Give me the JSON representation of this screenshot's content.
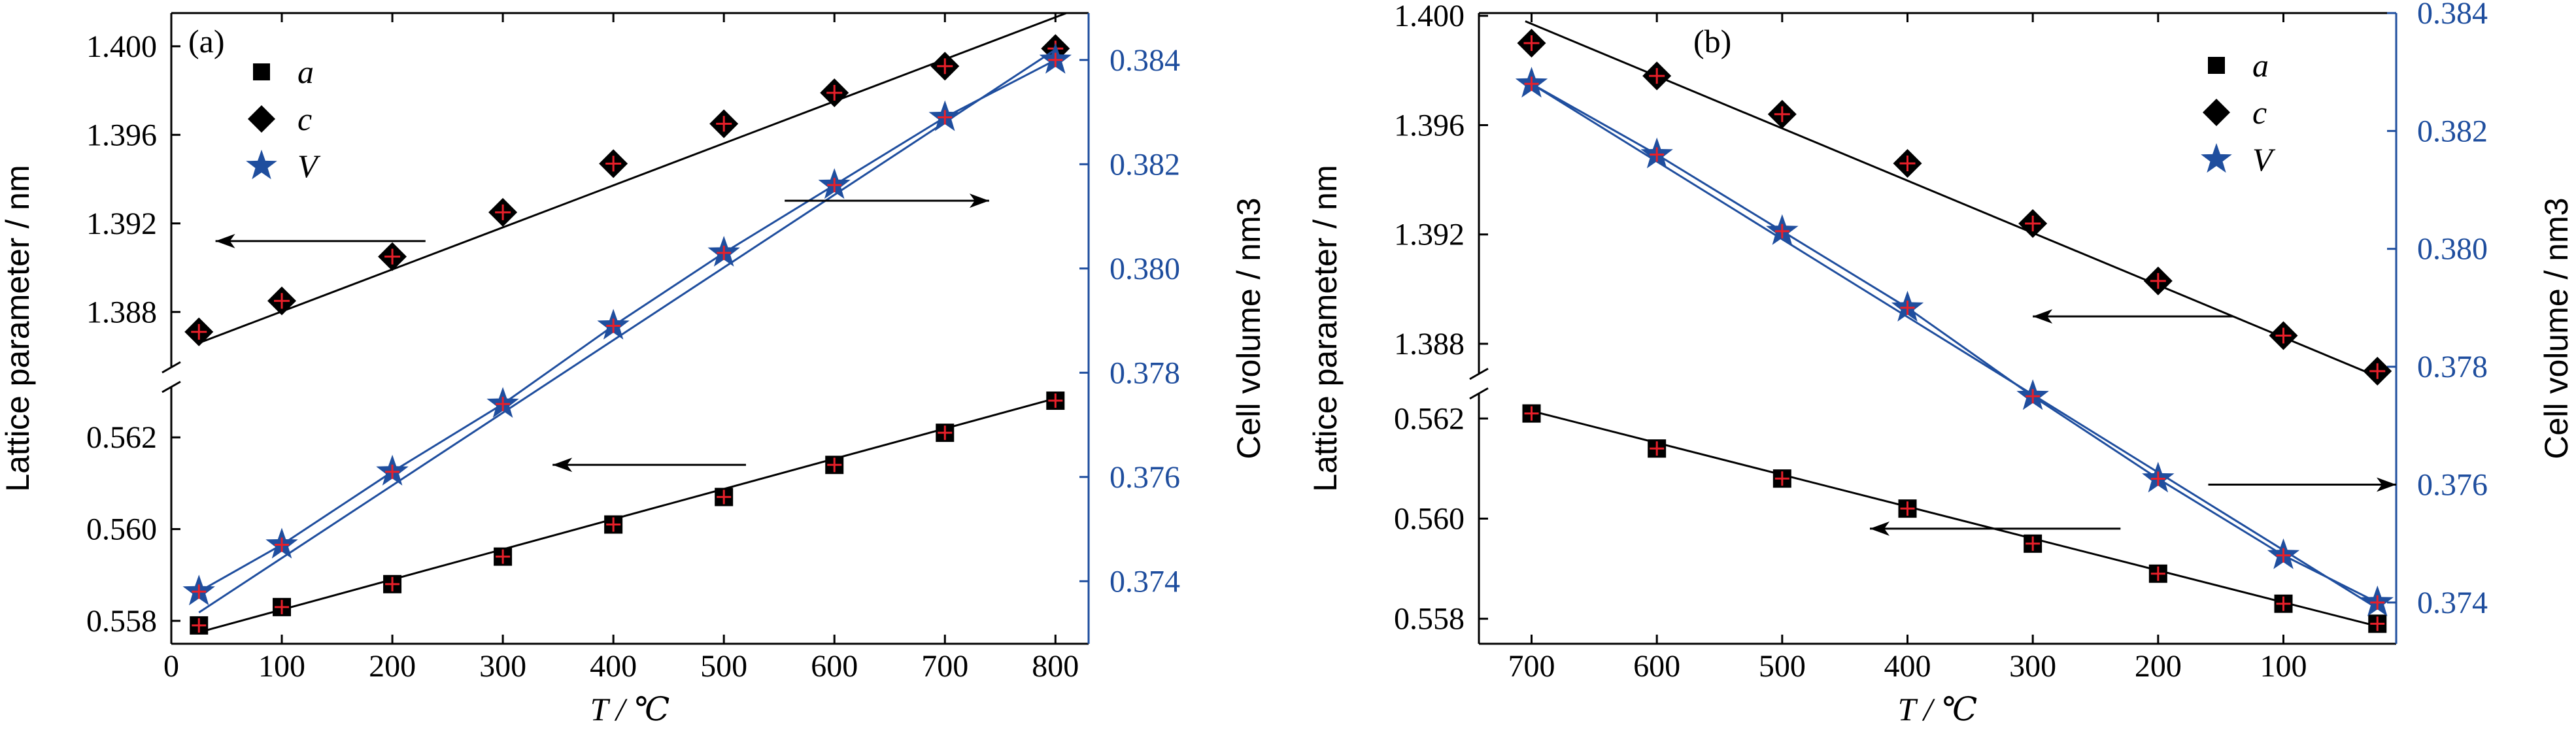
{
  "colors": {
    "black": "#000000",
    "blue": "#1f4e9e",
    "red": "#e8202a",
    "axis_right": "#1f4e9e"
  },
  "chart_data": [
    {
      "panel_label": "(a)",
      "type": "scatter",
      "xlabel": "T / ℃",
      "ylabel_left": "Lattice parameter / nm",
      "ylabel_right": "Cell volume / nm3",
      "x_ticks": [
        "0",
        "100",
        "200",
        "300",
        "400",
        "500",
        "600",
        "700",
        "800"
      ],
      "x_range": [
        0,
        830
      ],
      "x_reversed": false,
      "y_upper_ticks": [
        "1.388",
        "1.392",
        "1.396",
        "1.400"
      ],
      "y_upper_range": [
        1.3855,
        1.4015
      ],
      "y_lower_ticks": [
        "0.558",
        "0.560",
        "0.562"
      ],
      "y_lower_range": [
        0.5575,
        0.5631
      ],
      "y_right_ticks": [
        "0.374",
        "0.376",
        "0.378",
        "0.380",
        "0.382",
        "0.384"
      ],
      "y_right_range": [
        0.3728,
        0.3849
      ],
      "legend": [
        {
          "marker": "square",
          "label": "a"
        },
        {
          "marker": "diamond",
          "label": "c"
        },
        {
          "marker": "star",
          "label": "V"
        }
      ],
      "series": [
        {
          "name": "a",
          "axis": "lower",
          "marker": "square",
          "x": [
            25,
            100,
            200,
            300,
            400,
            500,
            600,
            700,
            800
          ],
          "y": [
            0.5579,
            0.5583,
            0.5588,
            0.5594,
            0.5601,
            0.5607,
            0.5614,
            0.5621,
            0.5628
          ],
          "fit": [
            [
              25,
              0.55775
            ],
            [
              800,
              0.56285
            ]
          ]
        },
        {
          "name": "c",
          "axis": "upper",
          "marker": "diamond",
          "x": [
            25,
            100,
            200,
            300,
            400,
            500,
            600,
            700,
            800
          ],
          "y": [
            1.3871,
            1.3885,
            1.3905,
            1.3925,
            1.3947,
            1.3965,
            1.3979,
            1.3991,
            1.3999
          ],
          "fit": [
            [
              25,
              1.3866
            ],
            [
              810,
              1.4015
            ]
          ]
        },
        {
          "name": "V",
          "axis": "right",
          "marker": "star",
          "x": [
            25,
            100,
            200,
            300,
            400,
            500,
            600,
            700,
            800
          ],
          "y": [
            0.3738,
            0.3747,
            0.3761,
            0.3774,
            0.3789,
            0.3803,
            0.3816,
            0.3829,
            0.384
          ],
          "fit": [
            [
              25,
              0.3734
            ],
            [
              800,
              0.3842
            ]
          ]
        }
      ],
      "arrows": [
        {
          "from": [
            230,
            1.3912
          ],
          "to": [
            40,
            1.3912
          ]
        },
        {
          "from": [
            555,
            0.3813
          ],
          "to": [
            740,
            0.3813
          ],
          "axis": "right"
        },
        {
          "from": [
            520,
            0.5614
          ],
          "to": [
            345,
            0.5614
          ],
          "axis": "lower"
        }
      ]
    },
    {
      "panel_label": "(b)",
      "type": "scatter",
      "xlabel": "T / ℃",
      "ylabel_left": "Lattice parameter / nm",
      "ylabel_right": "Cell volume / nm3",
      "x_ticks": [
        "700",
        "600",
        "500",
        "400",
        "300",
        "200",
        "100"
      ],
      "x_range": [
        742,
        10
      ],
      "x_reversed": true,
      "y_upper_ticks": [
        "1.388",
        "1.392",
        "1.396",
        "1.400"
      ],
      "y_upper_range": [
        1.3869,
        1.4001
      ],
      "y_lower_ticks": [
        "0.558",
        "0.560",
        "0.562"
      ],
      "y_lower_range": [
        0.5575,
        0.5625
      ],
      "y_right_ticks": [
        "0.374",
        "0.376",
        "0.378",
        "0.380",
        "0.382",
        "0.384"
      ],
      "y_right_range": [
        0.3733,
        0.384
      ],
      "legend": [
        {
          "marker": "square",
          "label": "a"
        },
        {
          "marker": "diamond",
          "label": "c"
        },
        {
          "marker": "star",
          "label": "V"
        }
      ],
      "series": [
        {
          "name": "a",
          "axis": "lower",
          "marker": "square",
          "x": [
            700,
            600,
            500,
            400,
            300,
            200,
            100,
            25
          ],
          "y": [
            0.5621,
            0.5614,
            0.5608,
            0.5602,
            0.5595,
            0.5589,
            0.5583,
            0.5579
          ],
          "fit": [
            [
              700,
              0.56215
            ],
            [
              25,
              0.55785
            ]
          ]
        },
        {
          "name": "c",
          "axis": "upper",
          "marker": "diamond",
          "x": [
            700,
            600,
            500,
            400,
            300,
            200,
            100,
            25
          ],
          "y": [
            1.399,
            1.3978,
            1.3964,
            1.3946,
            1.3924,
            1.3903,
            1.3883,
            1.387
          ],
          "fit": [
            [
              705,
              1.3998
            ],
            [
              25,
              1.3868
            ]
          ]
        },
        {
          "name": "V",
          "axis": "right",
          "marker": "star",
          "x": [
            700,
            600,
            500,
            400,
            300,
            200,
            100,
            25
          ],
          "y": [
            0.3828,
            0.3816,
            0.3803,
            0.379,
            0.3775,
            0.3761,
            0.3748,
            0.374
          ],
          "fit": [
            [
              700,
              0.3828
            ],
            [
              25,
              0.3739
            ]
          ]
        }
      ],
      "arrows": [
        {
          "from": [
            140,
            1.389
          ],
          "to": [
            300,
            1.389
          ]
        },
        {
          "from": [
            160,
            0.376
          ],
          "to": [
            10,
            0.376
          ],
          "axis": "right"
        },
        {
          "from": [
            230,
            0.5598
          ],
          "to": [
            430,
            0.5598
          ],
          "axis": "lower"
        }
      ]
    }
  ]
}
